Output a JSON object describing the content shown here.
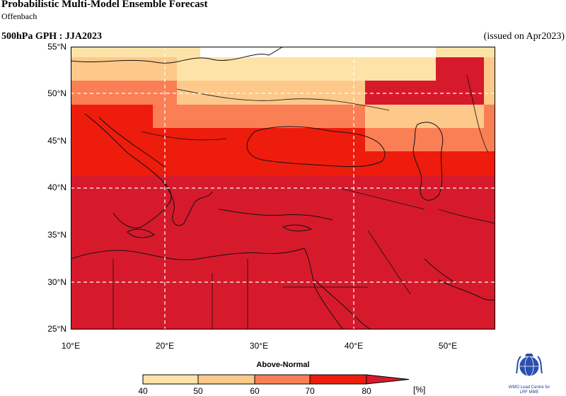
{
  "header": {
    "title": "Probabilistic Multi-Model Ensemble Forecast",
    "subtitle": "Offenbach",
    "field": "500hPa GPH : JJA2023",
    "issued": "(issued on Apr2023)"
  },
  "map": {
    "lat_labels": [
      "55°N",
      "50°N",
      "45°N",
      "40°N",
      "35°N",
      "30°N",
      "25°N"
    ],
    "lon_labels": [
      "10°E",
      "20°E",
      "30°E",
      "40°E",
      "50°E"
    ],
    "lat_range": [
      25,
      55
    ],
    "lon_range": [
      10,
      55
    ],
    "grid": "dashed at 20°E, 40°E, 30°N, 40°N, 50°N",
    "category": "Above-Normal",
    "colors": {
      "40-50": "#fde3a8",
      "50-60": "#fdc98a",
      "60-70": "#fb7f55",
      "70-80": "#ed1c0c",
      "80+": "#d61a2c",
      "no_signal": "#ffffff",
      "coastline": "#111111",
      "grid": "#ffffff"
    }
  },
  "legend": {
    "title": "Above-Normal",
    "ticks": [
      "40",
      "50",
      "60",
      "70",
      "80"
    ],
    "unit": "[%]"
  },
  "logo": {
    "icon": "wmo-emblem-icon",
    "line1": "WMO Lead Centre for",
    "line2": "LRF MME"
  }
}
